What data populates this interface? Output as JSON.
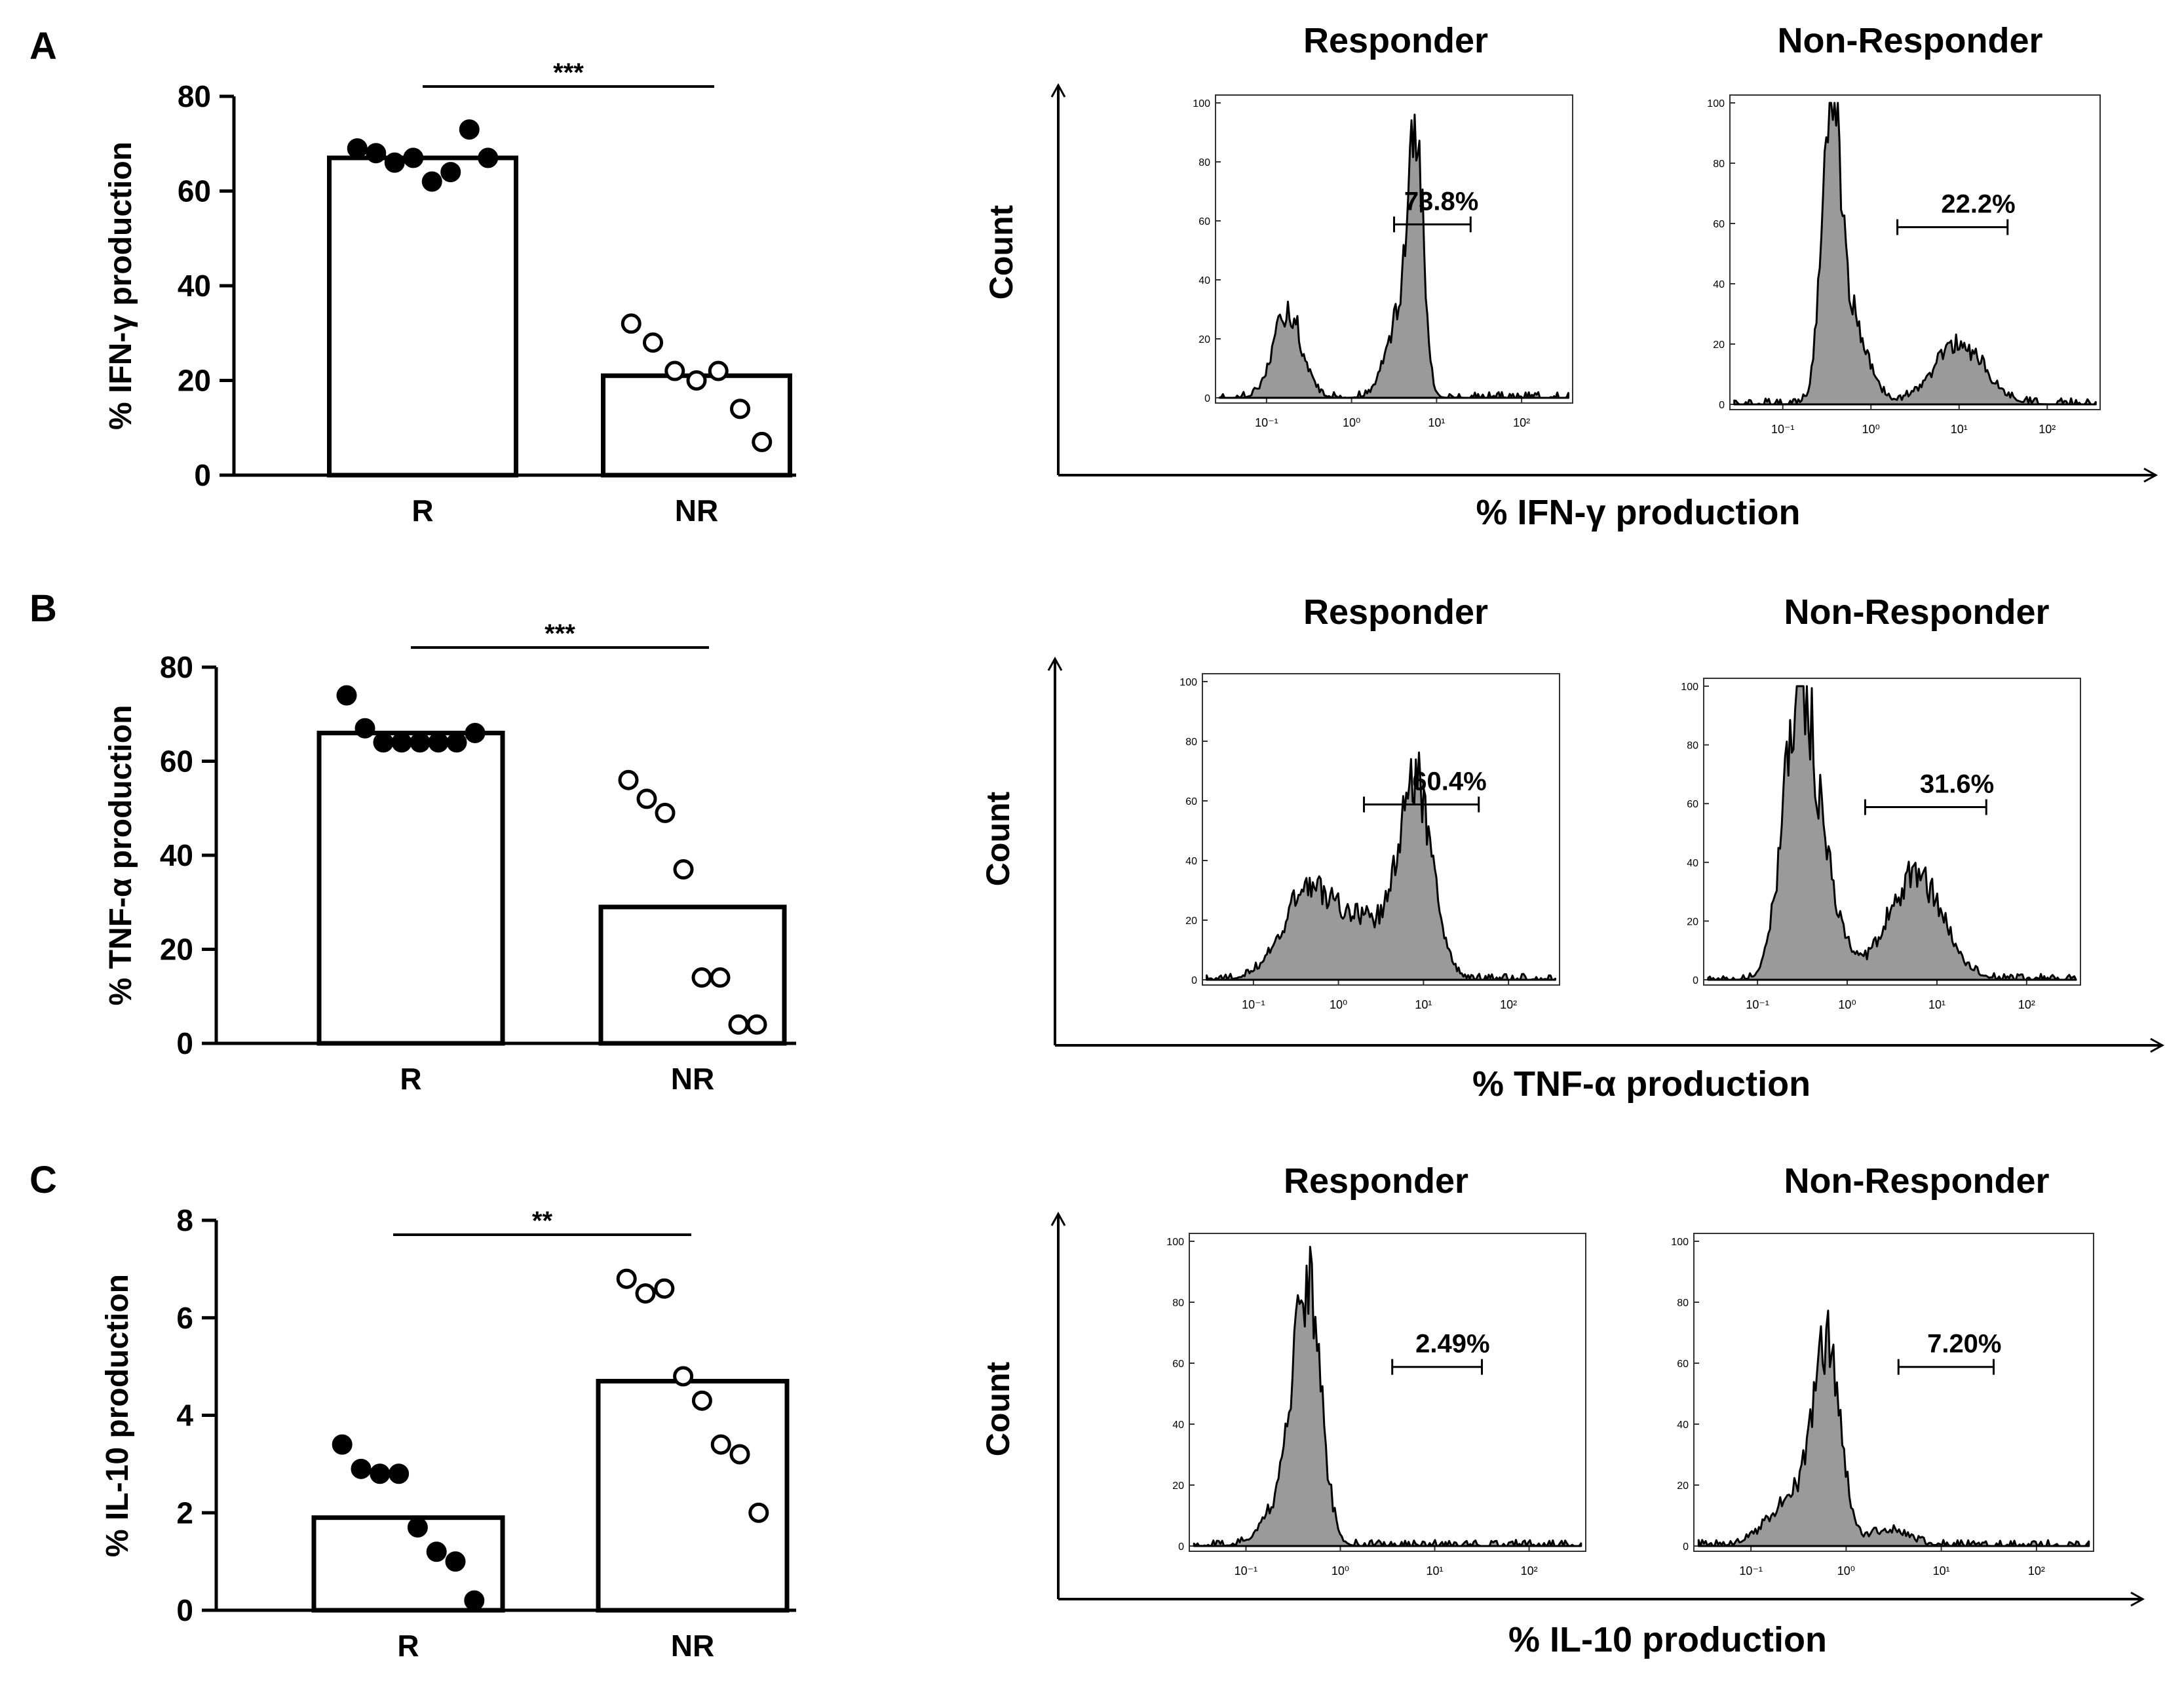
{
  "chart_data": [
    {
      "panel": "A",
      "type": "bar",
      "ylabel": "% IFN-γ production",
      "ylim": [
        0,
        80
      ],
      "yticks": [
        0,
        20,
        40,
        60,
        80
      ],
      "categories": [
        "R",
        "NR"
      ],
      "values": [
        67,
        21
      ],
      "points": {
        "R": [
          69,
          68,
          66,
          67,
          62,
          64,
          73,
          67
        ],
        "NR": [
          32,
          28,
          22,
          20,
          22,
          14,
          7
        ]
      },
      "significance": "***"
    },
    {
      "panel": "B",
      "type": "bar",
      "ylabel": "% TNF-α production",
      "ylim": [
        0,
        80
      ],
      "yticks": [
        0,
        20,
        40,
        60,
        80
      ],
      "categories": [
        "R",
        "NR"
      ],
      "values": [
        66,
        29
      ],
      "points": {
        "R": [
          74,
          67,
          64,
          64,
          64,
          64,
          64,
          66
        ],
        "NR": [
          56,
          52,
          49,
          37,
          14,
          14,
          4,
          4
        ]
      },
      "significance": "***"
    },
    {
      "panel": "C",
      "type": "bar",
      "ylabel": "% IL-10 production",
      "ylim": [
        0,
        8
      ],
      "yticks": [
        0,
        2,
        4,
        6,
        8
      ],
      "categories": [
        "R",
        "NR"
      ],
      "values": [
        1.9,
        4.7
      ],
      "points": {
        "R": [
          3.4,
          2.9,
          2.8,
          2.8,
          1.7,
          1.2,
          1.0,
          0.2
        ],
        "NR": [
          6.8,
          6.5,
          6.6,
          4.8,
          4.3,
          3.4,
          3.2,
          2.0
        ]
      },
      "significance": "**"
    }
  ],
  "histograms": [
    {
      "panel": "A",
      "xlabel": "% IFN-γ  production",
      "ylabel": "Count",
      "plots": [
        {
          "title": "Responder",
          "gate_label": "73.8%",
          "gate": [
            0.5,
            1.4
          ],
          "peaks": [
            [
              -0.75,
              0.16,
              30
            ],
            [
              0.75,
              0.09,
              87
            ],
            [
              0.55,
              0.15,
              26
            ]
          ]
        },
        {
          "title": "Non-Responder",
          "gate_label": "22.2%",
          "gate": [
            0.3,
            1.55
          ],
          "peaks": [
            [
              -0.45,
              0.1,
              93
            ],
            [
              -0.25,
              0.2,
              28
            ],
            [
              1.0,
              0.28,
              20
            ]
          ]
        }
      ]
    },
    {
      "panel": "B",
      "xlabel": "% TNF-α production",
      "ylabel": "Count",
      "plots": [
        {
          "title": "Responder",
          "gate_label": "60.4%",
          "gate": [
            0.3,
            1.65
          ],
          "peaks": [
            [
              -0.35,
              0.3,
              30
            ],
            [
              0.9,
              0.2,
              65
            ],
            [
              0.3,
              0.25,
              18
            ]
          ]
        },
        {
          "title": "Non-Responder",
          "gate_label": "31.6%",
          "gate": [
            0.2,
            1.55
          ],
          "peaks": [
            [
              -0.55,
              0.17,
              95
            ],
            [
              -0.25,
              0.18,
              30
            ],
            [
              0.75,
              0.3,
              35
            ]
          ]
        }
      ]
    },
    {
      "panel": "C",
      "xlabel": "% IL-10 production",
      "ylabel": "Count",
      "plots": [
        {
          "title": "Responder",
          "gate_label": "2.49%",
          "gate": [
            0.55,
            1.5
          ],
          "peaks": [
            [
              -0.35,
              0.14,
              80
            ],
            [
              -0.6,
              0.2,
              14
            ]
          ]
        },
        {
          "title": "Non-Responder",
          "gate_label": "7.20%",
          "gate": [
            0.55,
            1.55
          ],
          "peaks": [
            [
              -0.2,
              0.14,
              60
            ],
            [
              -0.55,
              0.25,
              16
            ],
            [
              0.45,
              0.2,
              5
            ]
          ]
        }
      ]
    }
  ],
  "hist_axis": {
    "yticks": [
      "0",
      "20",
      "40",
      "60",
      "80",
      "100"
    ],
    "xticks": [
      "10⁻¹",
      "10⁰",
      "10¹",
      "10²"
    ]
  },
  "panel_letters": [
    "A",
    "B",
    "C"
  ]
}
